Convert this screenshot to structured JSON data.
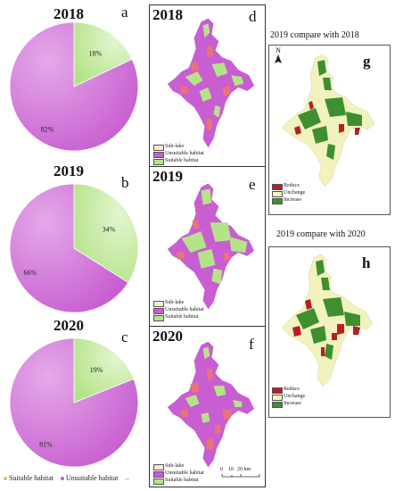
{
  "colors": {
    "suitable": "#b5e38a",
    "unsuitable": "#c85ed1",
    "sublake": "#fbe9d5",
    "lake_pink": "#e9737b",
    "reduce": "#b81f24",
    "unchange": "#f2f2bf",
    "increase": "#3f8f2f",
    "accent_dash": "#e8c24a"
  },
  "chart_data": [
    {
      "type": "pie",
      "panel": "a",
      "title": "2018",
      "categories": [
        "Suitable habitat",
        "Unsuitable habitat"
      ],
      "values": [
        18,
        82
      ],
      "labels": [
        "18%",
        "82%"
      ]
    },
    {
      "type": "pie",
      "panel": "b",
      "title": "2019",
      "categories": [
        "Suitable habitat",
        "Unsuitable habitat"
      ],
      "values": [
        34,
        66
      ],
      "labels": [
        "34%",
        "66%"
      ]
    },
    {
      "type": "pie",
      "panel": "c",
      "title": "2020",
      "categories": [
        "Suitable habitat",
        "Unsuitable habitat"
      ],
      "values": [
        19,
        81
      ],
      "labels": [
        "19%",
        "81%"
      ]
    }
  ],
  "pie_legend": {
    "suitable": "Suitable habitat",
    "unsuitable": "Unsuitable habitat"
  },
  "maps": {
    "d": {
      "year": "2018",
      "letter": "d",
      "legend": [
        "Sub-lake",
        "Unsuitable habitat",
        "Suitable habitat"
      ]
    },
    "e": {
      "year": "2019",
      "letter": "e",
      "legend": [
        "Sub-lake",
        "Unsuitable habitat",
        "Suitable habitat"
      ]
    },
    "f": {
      "year": "2020",
      "letter": "f",
      "legend": [
        "Sub-lake",
        "Unsuitable habitat",
        "Suitable habitat"
      ],
      "scale_labels": [
        "0",
        "10",
        "20 km"
      ]
    },
    "g": {
      "title": "2019 compare with 2018",
      "letter": "g",
      "north": "N",
      "legend": [
        "Reduce",
        "Unchange",
        "Increase"
      ]
    },
    "h": {
      "title": "2019 compare with 2020",
      "letter": "h",
      "legend": [
        "Reduce",
        "Unchange",
        "Increase"
      ]
    }
  }
}
